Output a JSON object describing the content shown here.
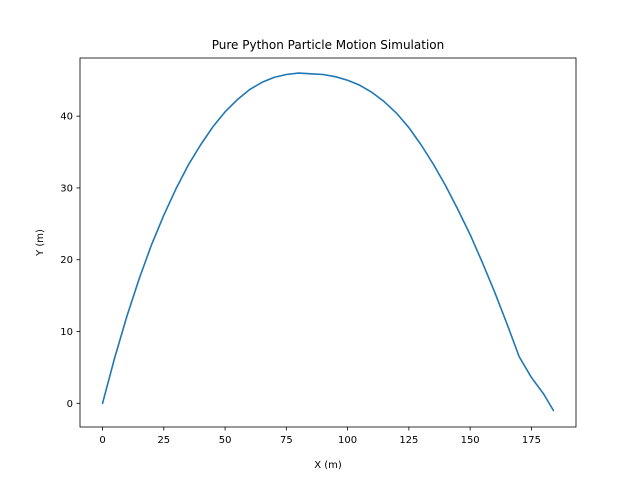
{
  "chart_data": {
    "type": "line",
    "title": "Pure Python Particle Motion Simulation",
    "xlabel": "X (m)",
    "ylabel": "Y (m)",
    "xlim": [
      -9.2,
      193.2
    ],
    "ylim": [
      -3.3,
      48.1
    ],
    "xticks": [
      0,
      25,
      50,
      75,
      100,
      125,
      150,
      175
    ],
    "yticks": [
      0,
      10,
      20,
      30,
      40
    ],
    "grid": false,
    "series": [
      {
        "color": "#1f77b4",
        "points": [
          [
            0,
            0
          ],
          [
            5,
            6.4
          ],
          [
            10,
            12.2
          ],
          [
            15,
            17.4
          ],
          [
            20,
            22.1
          ],
          [
            25,
            26.2
          ],
          [
            30,
            29.9
          ],
          [
            35,
            33.2
          ],
          [
            40,
            36.0
          ],
          [
            45,
            38.5
          ],
          [
            50,
            40.6
          ],
          [
            55,
            42.3
          ],
          [
            60,
            43.7
          ],
          [
            65,
            44.7
          ],
          [
            70,
            45.4
          ],
          [
            75,
            45.8
          ],
          [
            80,
            46.0
          ],
          [
            85,
            45.9
          ],
          [
            90,
            45.8
          ],
          [
            95,
            45.5
          ],
          [
            100,
            45.0
          ],
          [
            105,
            44.3
          ],
          [
            110,
            43.3
          ],
          [
            115,
            42.0
          ],
          [
            120,
            40.4
          ],
          [
            125,
            38.4
          ],
          [
            130,
            36.0
          ],
          [
            135,
            33.3
          ],
          [
            140,
            30.3
          ],
          [
            145,
            27.0
          ],
          [
            150,
            23.5
          ],
          [
            155,
            19.6
          ],
          [
            160,
            15.5
          ],
          [
            165,
            11.1
          ],
          [
            170,
            6.5
          ],
          [
            175,
            3.6
          ],
          [
            180,
            1.3
          ],
          [
            184,
            -1.0
          ]
        ]
      }
    ]
  }
}
